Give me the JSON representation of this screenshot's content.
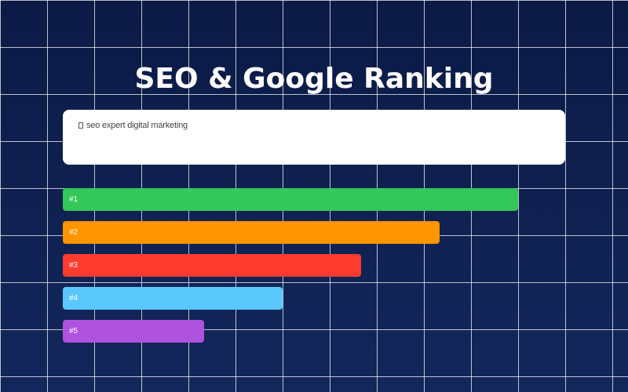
{
  "title": "SEO & Google Ranking",
  "search": {
    "query": "seo expert digital marketing",
    "icon": "search-icon"
  },
  "ranking": [
    {
      "label": "#1",
      "fraction": 1.0,
      "color": "#34c759"
    },
    {
      "label": "#2",
      "fraction": 0.828,
      "color": "#ff9500"
    },
    {
      "label": "#3",
      "fraction": 0.655,
      "color": "#ff3b30"
    },
    {
      "label": "#4",
      "fraction": 0.483,
      "color": "#5ac8fa"
    },
    {
      "label": "#5",
      "fraction": 0.31,
      "color": "#af52de"
    }
  ],
  "colors": {
    "background": "#0b1a45",
    "grid": "#ffffff"
  }
}
